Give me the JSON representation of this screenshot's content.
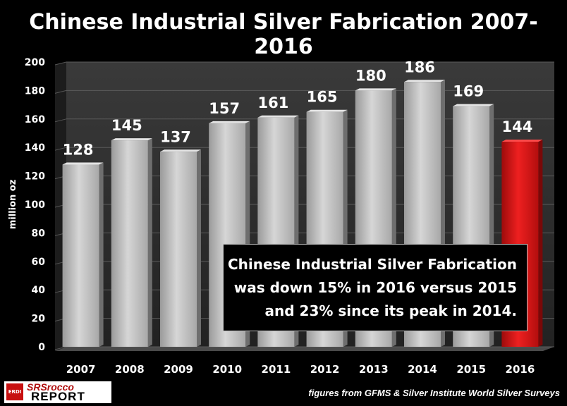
{
  "chart_data": {
    "type": "bar",
    "title": "Chinese Industrial Silver Fabrication 2007-2016",
    "ylabel": "million oz",
    "categories": [
      "2007",
      "2008",
      "2009",
      "2010",
      "2011",
      "2012",
      "2013",
      "2014",
      "2015",
      "2016"
    ],
    "values": [
      128,
      145,
      137,
      157,
      161,
      165,
      180,
      186,
      169,
      144
    ],
    "data_labels": [
      "128",
      "145",
      "137",
      "157",
      "161",
      "165",
      "180",
      "186",
      "169",
      "144"
    ],
    "ylim": [
      0,
      200
    ],
    "yticks": [
      0,
      20,
      40,
      60,
      80,
      100,
      120,
      140,
      160,
      180,
      200
    ],
    "grid": true,
    "colors": {
      "default_bar": "#bfbfbf",
      "highlight_bar": "#e01515",
      "background": "#000000",
      "plot_area": "#262626"
    },
    "highlight": [
      "2016"
    ]
  },
  "annotation": {
    "lines": [
      "Chinese Industrial Silver Fabrication",
      "was down 15% in 2016 versus 2015",
      "and 23% since its peak in 2014."
    ]
  },
  "logo": {
    "badge": "ERDI",
    "line1": "SRSrocco",
    "line2": "REPORT"
  },
  "source": "figures from GFMS & Silver Institute World Silver Surveys"
}
